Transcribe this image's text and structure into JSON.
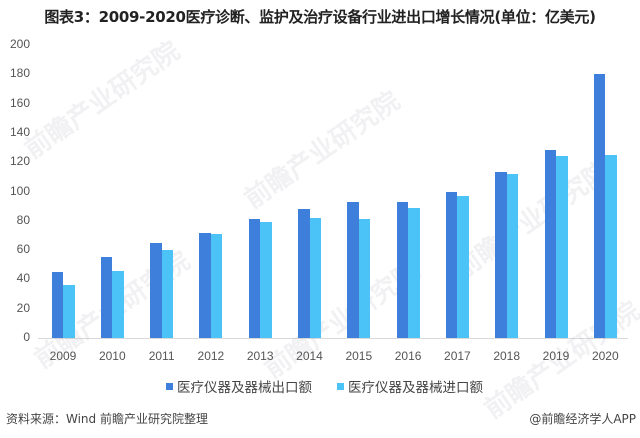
{
  "title": "图表3：2009-2020医疗诊断、监护及治疗设备行业进出口增长情况(单位：亿美元)",
  "footer": {
    "source": "资料来源：Wind 前瞻产业研究院整理",
    "credit": "@前瞻经济学人APP"
  },
  "watermark": "前瞻产业研究院",
  "colors": {
    "export": "#3f7fdc",
    "import": "#4cc3f6"
  },
  "chart_data": {
    "type": "bar",
    "title": "图表3：2009-2020医疗诊断、监护及治疗设备行业进出口增长情况(单位：亿美元)",
    "xlabel": "",
    "ylabel": "",
    "ylim": [
      0,
      200
    ],
    "yticks": [
      0,
      20,
      40,
      60,
      80,
      100,
      120,
      140,
      160,
      180,
      200
    ],
    "grid": false,
    "legend_position": "bottom",
    "categories": [
      "2009",
      "2010",
      "2011",
      "2012",
      "2013",
      "2014",
      "2015",
      "2016",
      "2017",
      "2018",
      "2019",
      "2020"
    ],
    "series": [
      {
        "name": "医疗仪器及器械出口额",
        "values": [
          45,
          55,
          65,
          72,
          81,
          88,
          93,
          93,
          100,
          113,
          128,
          180
        ]
      },
      {
        "name": "医疗仪器及器械进口额",
        "values": [
          36,
          46,
          60,
          71,
          79,
          82,
          81,
          89,
          97,
          112,
          124,
          125
        ]
      }
    ],
    "source": "资料来源：Wind 前瞻产业研究院整理"
  }
}
